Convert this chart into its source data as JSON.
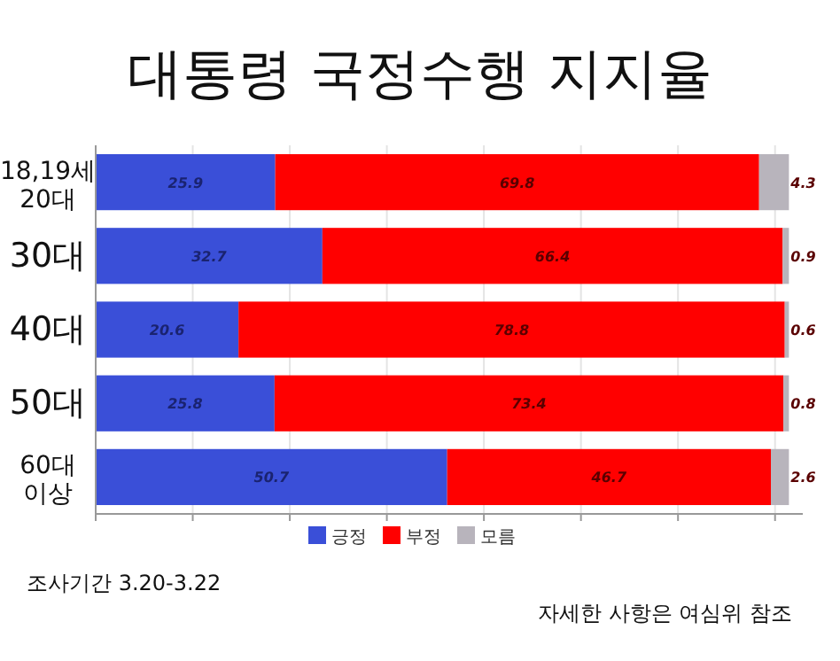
{
  "chart_data": {
    "type": "bar",
    "orientation": "horizontal",
    "stacked": true,
    "title": "대통령 국정수행 지지율",
    "categories": [
      "18,19세 20대",
      "30대",
      "40대",
      "50대",
      "60대 이상"
    ],
    "series": [
      {
        "name": "긍정",
        "color": "#3a4fd8",
        "values": [
          25.9,
          32.7,
          20.6,
          25.8,
          50.7
        ]
      },
      {
        "name": "부정",
        "color": "#ff0000",
        "values": [
          69.8,
          66.4,
          78.8,
          73.4,
          46.7
        ]
      },
      {
        "name": "모름",
        "color": "#b8b4bc",
        "values": [
          4.3,
          0.9,
          0.6,
          0.8,
          2.6
        ]
      }
    ],
    "xlim": [
      0,
      102
    ],
    "xticks": [
      {
        "value": 0,
        "label": null
      },
      {
        "value": 14,
        "label": null
      },
      {
        "value": 28,
        "label": null
      },
      {
        "value": 42,
        "label": null
      },
      {
        "value": 56,
        "label": null
      },
      {
        "value": 70,
        "label": null
      },
      {
        "value": 84,
        "label": null
      },
      {
        "value": 98,
        "label": null
      }
    ],
    "tick_labels": "y",
    "grid": "x",
    "legend": "bottom",
    "data_labels": true,
    "annotations": [
      "조사기간 3.20-3.22",
      "자세한 사항은 여심위 참조"
    ]
  }
}
